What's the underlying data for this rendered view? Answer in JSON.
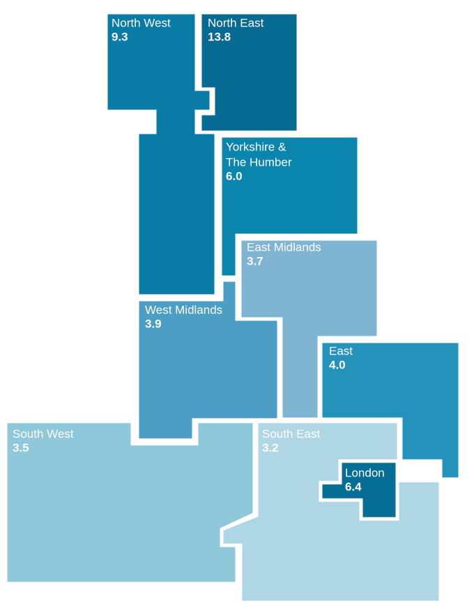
{
  "regions": [
    {
      "name": [
        "North West"
      ],
      "value": 9.3,
      "color": "#0a7aa6"
    },
    {
      "name": [
        "North East"
      ],
      "value": 13.8,
      "color": "#066a92"
    },
    {
      "name": [
        "Yorkshire &",
        "The Humber"
      ],
      "value": 6.0,
      "value_label": "6.0",
      "color": "#0a85ae"
    },
    {
      "name": [
        "East Midlands"
      ],
      "value": 3.7,
      "color": "#7fb4d3"
    },
    {
      "name": [
        "West Midlands"
      ],
      "value": 3.9,
      "color": "#4c9ec4"
    },
    {
      "name": [
        "East"
      ],
      "value": 4.0,
      "value_label": "4.0",
      "color": "#2592bb"
    },
    {
      "name": [
        "South West"
      ],
      "value": 3.5,
      "color": "#8ec8da"
    },
    {
      "name": [
        "South East"
      ],
      "value": 3.2,
      "color": "#afd6e4"
    },
    {
      "name": [
        "London"
      ],
      "value": 6.4,
      "color": "#066d95"
    }
  ]
}
